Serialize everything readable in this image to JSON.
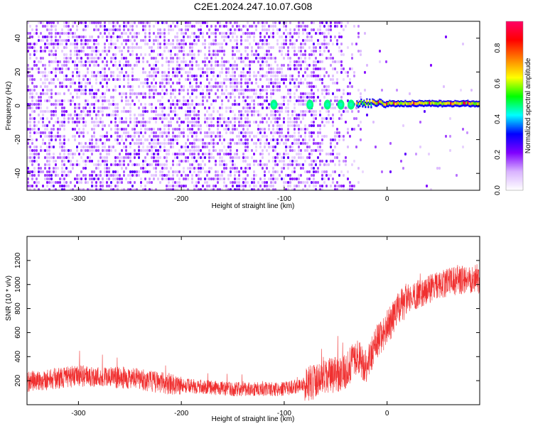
{
  "title": "C2E1.2024.247.10.07.G08",
  "chart_data": [
    {
      "type": "heatmap",
      "xlabel": "Height of straight line (km)",
      "ylabel": "Frequency (Hz)",
      "xlim": [
        -350,
        90
      ],
      "ylim": [
        -50,
        50
      ],
      "xticks": [
        -300,
        -200,
        -100,
        0
      ],
      "yticks": [
        -40,
        -20,
        0,
        20,
        40
      ],
      "xticklabels": [
        "-300",
        "-200",
        "-100",
        "0"
      ],
      "yticklabels": [
        "-40",
        "-20",
        "0",
        "20",
        "40"
      ],
      "colorbar": {
        "label": "Normalized spectral amplitude",
        "range": [
          0,
          0.95
        ],
        "ticks": [
          0.0,
          0.2,
          0.4,
          0.6,
          0.8
        ],
        "ticklabels": [
          "0.0",
          "0.2",
          "0.4",
          "0.6",
          "0.8"
        ],
        "colormap": [
          "#ffffff",
          "#d9b3ff",
          "#8000ff",
          "#0000ff",
          "#00ffff",
          "#00ff00",
          "#ffff00",
          "#ff8000",
          "#ff0000",
          "#ff0066"
        ]
      },
      "features": {
        "noise_region_x": [
          -350,
          -75
        ],
        "fringe_region_x": [
          -75,
          -20
        ],
        "carrier_line_x": [
          -30,
          90
        ],
        "carrier_line_freq": 1.5,
        "carrier_peak_amplitude": 0.9
      }
    },
    {
      "type": "line",
      "xlabel": "Height of straight line (km)",
      "ylabel": "SNR (10 * v/v)",
      "xlim": [
        -350,
        90
      ],
      "ylim": [
        0,
        1400
      ],
      "xticks": [
        -300,
        -200,
        -100,
        0
      ],
      "yticks": [
        200,
        400,
        600,
        800,
        1000,
        1200
      ],
      "xticklabels": [
        "-300",
        "-200",
        "-100",
        "0"
      ],
      "yticklabels": [
        "200",
        "400",
        "600",
        "800",
        "1000",
        "1200"
      ],
      "line_color": "#f03030",
      "trend": {
        "x": [
          -350,
          -300,
          -250,
          -200,
          -150,
          -100,
          -80,
          -60,
          -40,
          -30,
          -20,
          -10,
          0,
          10,
          20,
          40,
          60,
          80,
          90
        ],
        "y": [
          190,
          240,
          220,
          160,
          130,
          130,
          170,
          220,
          280,
          400,
          330,
          520,
          640,
          780,
          880,
          960,
          1020,
          1050,
          1040
        ]
      }
    }
  ]
}
